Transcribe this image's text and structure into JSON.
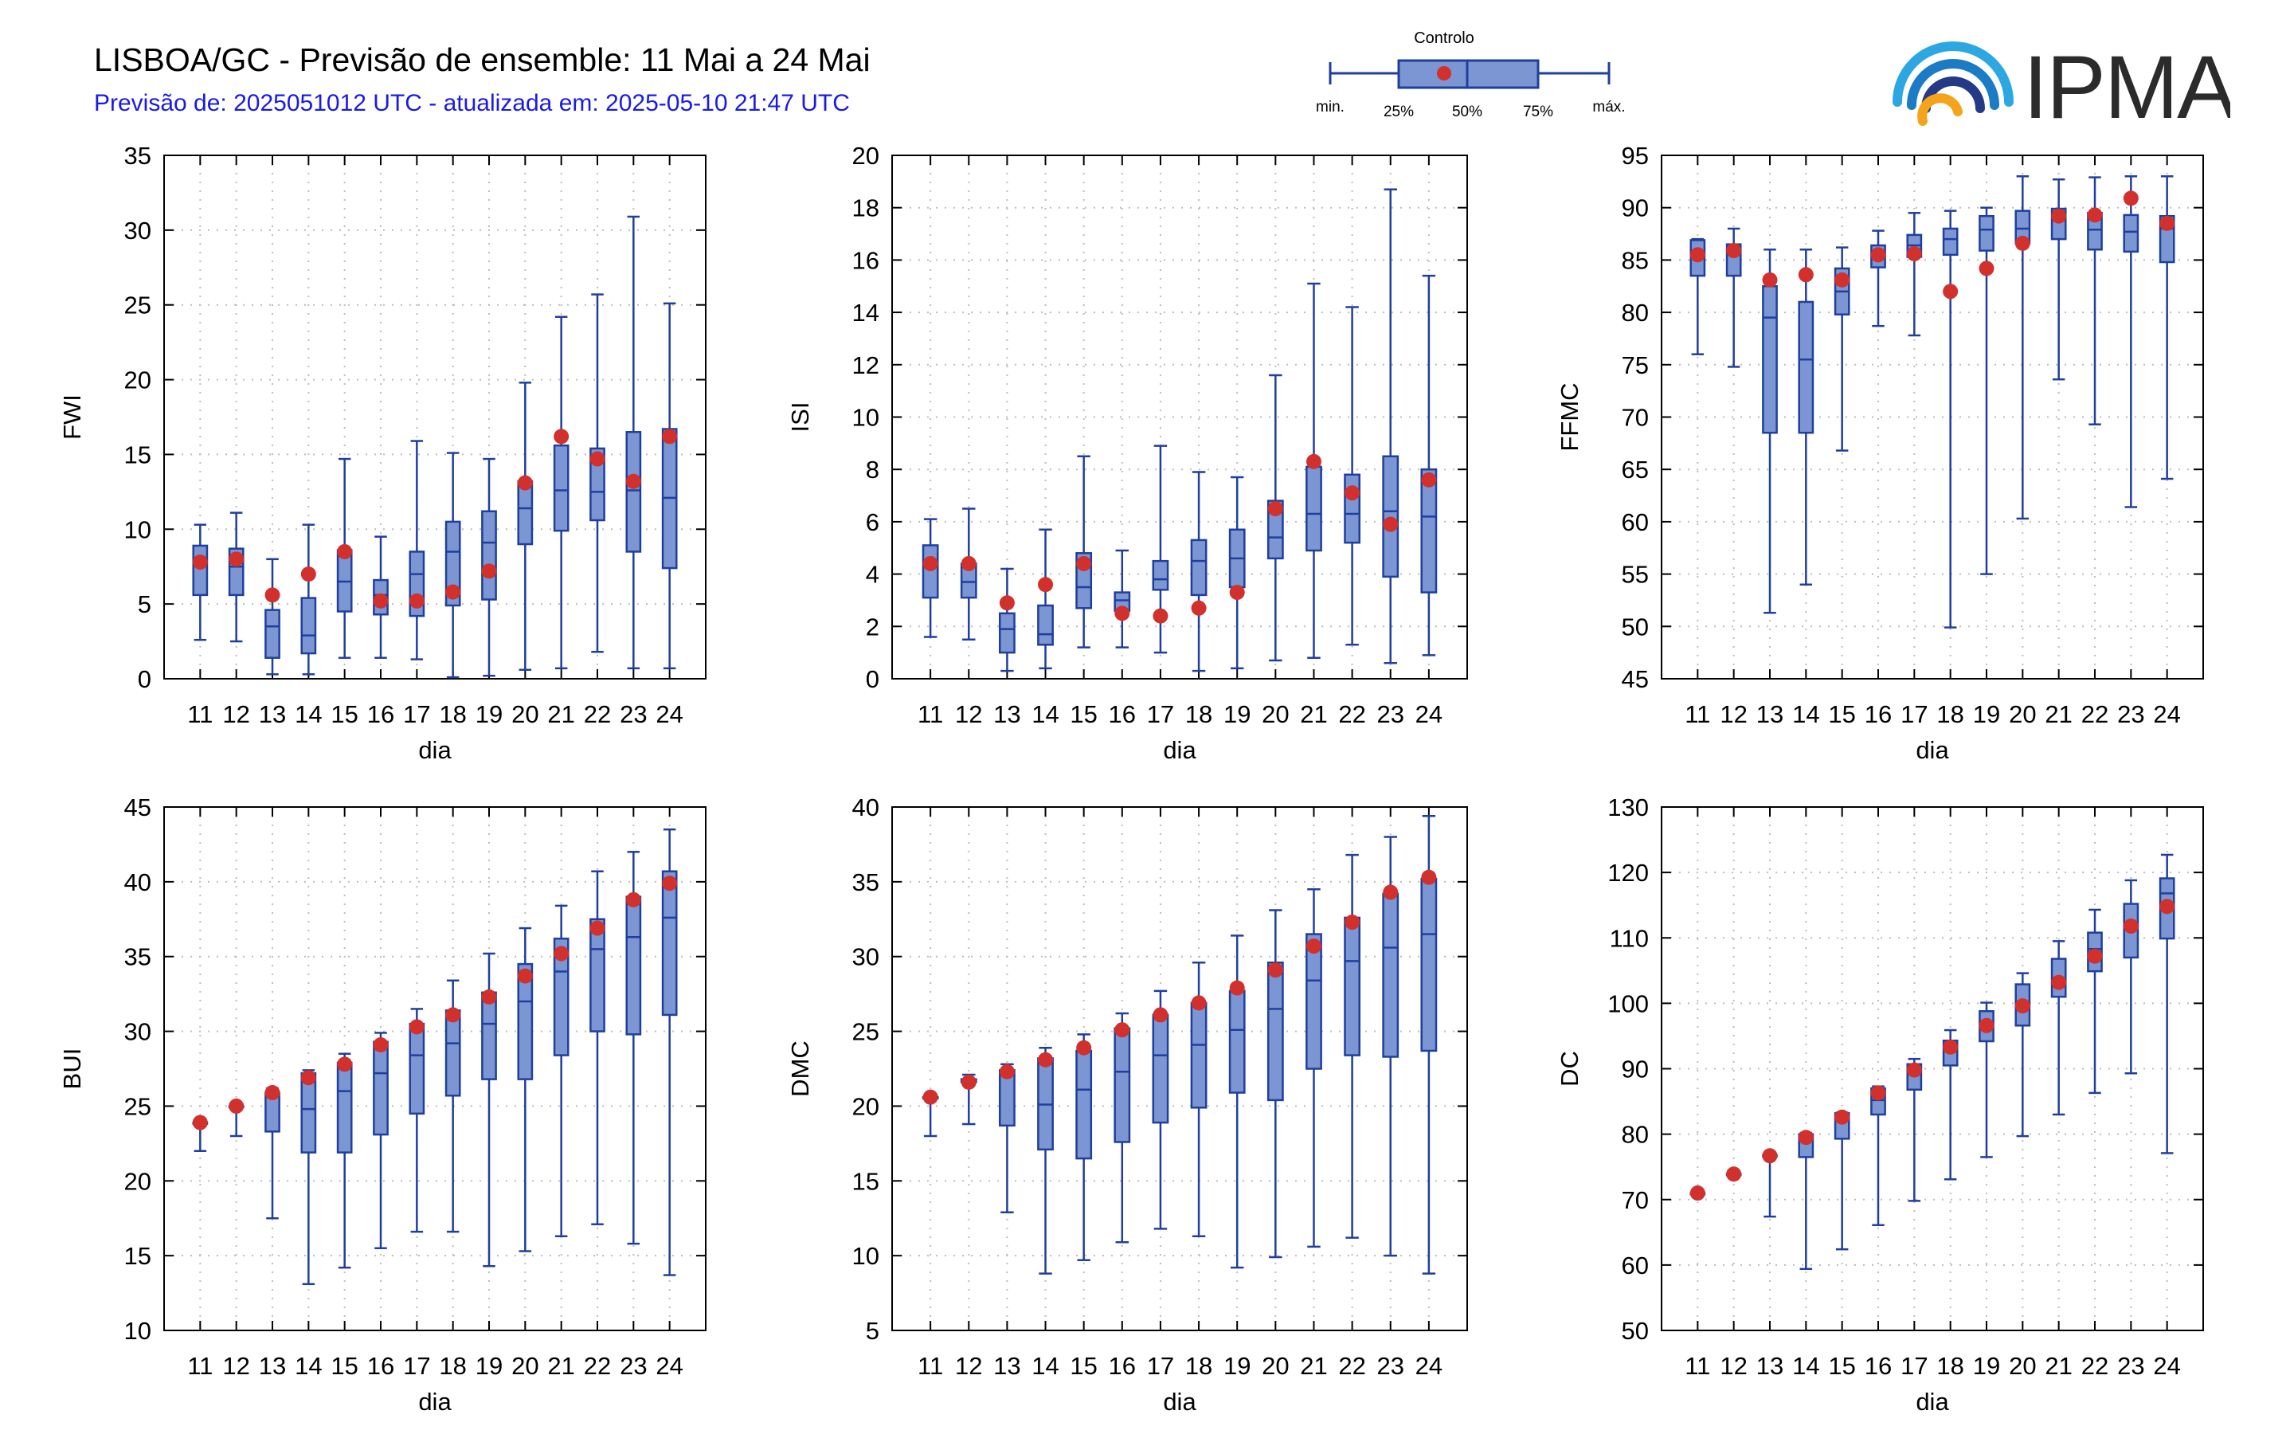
{
  "header": {
    "title": "LISBOA/GC - Previsão de ensemble: 11 Mai a 24 Mai",
    "subtitle": "Previsão de: 2025051012 UTC - atualizada em: 2025-05-10 21:47 UTC"
  },
  "logo": {
    "text": "IPMA"
  },
  "legend": {
    "control_label": "Controlo",
    "min_label": "min.",
    "p25_label": "25%",
    "p50_label": "50%",
    "p75_label": "75%",
    "max_label": "máx."
  },
  "colors": {
    "box_fill": "#7b96d2",
    "box_stroke": "#1f3f9e",
    "control_marker": "#d1302c",
    "grid": "#bdbdbd"
  },
  "chart_data": [
    {
      "type": "box",
      "ylabel": "FWI",
      "xlabel": "dia",
      "ylim": [
        0,
        35
      ],
      "yticks": [
        0,
        5,
        10,
        15,
        20,
        25,
        30,
        35
      ],
      "categories": [
        "11",
        "12",
        "13",
        "14",
        "15",
        "16",
        "17",
        "18",
        "19",
        "20",
        "21",
        "22",
        "23",
        "24"
      ],
      "min": [
        2.6,
        2.5,
        0.3,
        0.3,
        1.4,
        1.4,
        1.3,
        0.1,
        0.2,
        0.6,
        0.7,
        1.8,
        0.7,
        0.7
      ],
      "q1": [
        5.6,
        5.6,
        1.4,
        1.7,
        4.5,
        4.3,
        4.2,
        4.9,
        5.3,
        9.0,
        9.9,
        10.6,
        8.5,
        7.4
      ],
      "median": [
        7.7,
        7.5,
        3.5,
        2.9,
        6.5,
        5.6,
        7.0,
        8.5,
        9.1,
        11.4,
        12.6,
        12.5,
        12.6,
        12.1
      ],
      "q3": [
        8.9,
        8.7,
        4.6,
        5.4,
        8.6,
        6.6,
        8.5,
        10.5,
        11.2,
        13.2,
        15.6,
        15.4,
        16.5,
        16.7
      ],
      "max": [
        10.3,
        11.1,
        8.0,
        10.3,
        14.7,
        9.5,
        15.9,
        15.1,
        14.7,
        19.8,
        24.2,
        25.7,
        30.9,
        25.1
      ],
      "control": [
        7.8,
        8.0,
        5.6,
        7.0,
        8.5,
        5.2,
        5.2,
        5.8,
        7.2,
        13.1,
        16.2,
        14.7,
        13.2,
        16.2
      ]
    },
    {
      "type": "box",
      "ylabel": "ISI",
      "xlabel": "dia",
      "ylim": [
        0,
        20
      ],
      "yticks": [
        0,
        2,
        4,
        6,
        8,
        10,
        12,
        14,
        16,
        18,
        20
      ],
      "categories": [
        "11",
        "12",
        "13",
        "14",
        "15",
        "16",
        "17",
        "18",
        "19",
        "20",
        "21",
        "22",
        "23",
        "24"
      ],
      "min": [
        1.6,
        1.5,
        0.3,
        0.4,
        1.2,
        1.2,
        1.0,
        0.3,
        0.4,
        0.7,
        0.8,
        1.3,
        0.6,
        0.9
      ],
      "q1": [
        3.1,
        3.1,
        1.0,
        1.3,
        2.7,
        2.6,
        3.4,
        3.2,
        3.5,
        4.6,
        4.9,
        5.2,
        3.9,
        3.3
      ],
      "median": [
        4.3,
        3.7,
        1.9,
        1.7,
        3.5,
        3.0,
        3.8,
        4.5,
        4.6,
        5.4,
        6.3,
        6.3,
        6.4,
        6.2
      ],
      "q3": [
        5.1,
        4.4,
        2.5,
        2.8,
        4.8,
        3.3,
        4.5,
        5.3,
        5.7,
        6.8,
        8.1,
        7.8,
        8.5,
        8.0
      ],
      "max": [
        6.1,
        6.5,
        4.2,
        5.7,
        8.5,
        4.9,
        8.9,
        7.9,
        7.7,
        11.6,
        15.1,
        14.2,
        18.7,
        15.4
      ],
      "control": [
        4.4,
        4.4,
        2.9,
        3.6,
        4.4,
        2.5,
        2.4,
        2.7,
        3.3,
        6.5,
        8.3,
        7.1,
        5.9,
        7.6
      ]
    },
    {
      "type": "box",
      "ylabel": "FFMC",
      "xlabel": "dia",
      "ylim": [
        45,
        95
      ],
      "yticks": [
        45,
        50,
        55,
        60,
        65,
        70,
        75,
        80,
        85,
        90,
        95
      ],
      "categories": [
        "11",
        "12",
        "13",
        "14",
        "15",
        "16",
        "17",
        "18",
        "19",
        "20",
        "21",
        "22",
        "23",
        "24"
      ],
      "min": [
        76.0,
        74.8,
        51.3,
        54.0,
        66.8,
        78.7,
        77.8,
        49.9,
        55.0,
        60.3,
        73.6,
        69.3,
        61.4,
        64.1
      ],
      "q1": [
        83.5,
        83.5,
        68.5,
        68.5,
        79.8,
        84.3,
        85.3,
        85.5,
        85.9,
        86.6,
        87.0,
        86.0,
        85.8,
        84.8
      ],
      "median": [
        85.8,
        85.7,
        79.5,
        75.5,
        82.0,
        85.5,
        86.4,
        87.0,
        87.9,
        88.0,
        88.8,
        87.9,
        87.7,
        88.0
      ],
      "q3": [
        86.9,
        86.5,
        82.5,
        81.0,
        84.2,
        86.4,
        87.4,
        88.0,
        89.2,
        89.7,
        89.9,
        89.5,
        89.3,
        89.2
      ],
      "max": [
        87.0,
        88.0,
        86.0,
        86.0,
        86.2,
        87.8,
        89.5,
        89.7,
        90.0,
        93.0,
        92.7,
        92.9,
        93.0,
        93.0
      ],
      "control": [
        85.5,
        85.9,
        83.1,
        83.6,
        83.1,
        85.5,
        85.6,
        82.0,
        84.2,
        86.6,
        89.2,
        89.3,
        90.9,
        88.5
      ]
    },
    {
      "type": "box",
      "ylabel": "BUI",
      "xlabel": "dia",
      "ylim": [
        10,
        45
      ],
      "yticks": [
        10,
        15,
        20,
        25,
        30,
        35,
        40,
        45
      ],
      "categories": [
        "11",
        "12",
        "13",
        "14",
        "15",
        "16",
        "17",
        "18",
        "19",
        "20",
        "21",
        "22",
        "23",
        "24"
      ],
      "min": [
        22.0,
        23.0,
        17.5,
        13.1,
        14.2,
        15.5,
        16.6,
        16.6,
        14.3,
        15.3,
        16.3,
        17.1,
        15.8,
        13.7
      ],
      "q1": [
        23.9,
        25.0,
        23.3,
        21.9,
        21.9,
        23.1,
        24.5,
        25.7,
        26.8,
        26.8,
        28.4,
        30.0,
        29.8,
        31.1
      ],
      "median": [
        23.9,
        25.0,
        25.8,
        24.8,
        26.0,
        27.2,
        28.4,
        29.2,
        30.5,
        32.0,
        34.0,
        35.5,
        36.3,
        37.6
      ],
      "q3": [
        23.9,
        25.0,
        25.9,
        27.2,
        27.9,
        29.3,
        30.5,
        31.4,
        32.6,
        34.5,
        36.2,
        37.5,
        39.0,
        40.7
      ],
      "max": [
        23.9,
        25.0,
        26.2,
        27.4,
        28.5,
        29.9,
        31.5,
        33.4,
        35.2,
        36.9,
        38.4,
        40.7,
        42.0,
        43.5
      ],
      "control": [
        23.9,
        25.0,
        25.9,
        26.9,
        27.8,
        29.1,
        30.3,
        31.1,
        32.3,
        33.7,
        35.2,
        36.9,
        38.8,
        39.9
      ]
    },
    {
      "type": "box",
      "ylabel": "DMC",
      "xlabel": "dia",
      "ylim": [
        5,
        40
      ],
      "yticks": [
        5,
        10,
        15,
        20,
        25,
        30,
        35,
        40
      ],
      "categories": [
        "11",
        "12",
        "13",
        "14",
        "15",
        "16",
        "17",
        "18",
        "19",
        "20",
        "21",
        "22",
        "23",
        "24"
      ],
      "min": [
        18.0,
        18.8,
        12.9,
        8.8,
        9.7,
        10.9,
        11.8,
        11.3,
        9.2,
        9.9,
        10.6,
        11.2,
        10.0,
        8.8
      ],
      "q1": [
        20.6,
        21.6,
        18.7,
        17.1,
        16.5,
        17.6,
        18.9,
        19.9,
        20.9,
        20.4,
        22.5,
        23.4,
        23.3,
        23.7
      ],
      "median": [
        20.6,
        21.6,
        22.1,
        20.1,
        21.1,
        22.3,
        23.4,
        24.1,
        25.1,
        26.5,
        28.4,
        29.7,
        30.6,
        31.5
      ],
      "q3": [
        20.6,
        21.8,
        22.4,
        23.2,
        23.7,
        25.2,
        26.1,
        26.9,
        27.7,
        29.6,
        31.5,
        32.6,
        34.2,
        35.2
      ],
      "max": [
        20.6,
        22.1,
        22.8,
        23.9,
        24.8,
        26.2,
        27.7,
        29.6,
        31.4,
        33.1,
        34.5,
        36.8,
        38.0,
        39.4
      ],
      "control": [
        20.6,
        21.6,
        22.3,
        23.1,
        23.9,
        25.1,
        26.1,
        26.9,
        27.9,
        29.1,
        30.7,
        32.3,
        34.3,
        35.3
      ]
    },
    {
      "type": "box",
      "ylabel": "DC",
      "xlabel": "dia",
      "ylim": [
        50,
        130
      ],
      "yticks": [
        50,
        60,
        70,
        80,
        90,
        100,
        110,
        120,
        130
      ],
      "categories": [
        "11",
        "12",
        "13",
        "14",
        "15",
        "16",
        "17",
        "18",
        "19",
        "20",
        "21",
        "22",
        "23",
        "24"
      ],
      "min": [
        71.0,
        73.9,
        67.4,
        59.4,
        62.4,
        66.1,
        69.8,
        73.1,
        76.5,
        79.7,
        83.0,
        86.3,
        89.3,
        77.1
      ],
      "q1": [
        71.0,
        73.9,
        76.6,
        76.5,
        79.3,
        83.0,
        86.8,
        90.5,
        94.2,
        96.6,
        101.0,
        104.9,
        107.0,
        109.9
      ],
      "median": [
        71.0,
        73.9,
        76.7,
        79.4,
        82.3,
        85.2,
        89.2,
        92.9,
        96.9,
        99.8,
        103.7,
        108.3,
        112.1,
        116.8
      ],
      "q3": [
        71.0,
        73.9,
        76.8,
        80.0,
        83.2,
        87.0,
        90.7,
        94.3,
        98.8,
        102.9,
        106.8,
        110.8,
        115.2,
        119.1
      ],
      "max": [
        71.0,
        74.4,
        76.9,
        80.2,
        83.3,
        87.3,
        91.5,
        95.9,
        100.1,
        104.6,
        109.5,
        114.3,
        118.8,
        122.7
      ],
      "control": [
        71.0,
        73.9,
        76.7,
        79.5,
        82.6,
        86.3,
        89.8,
        93.3,
        96.6,
        99.6,
        103.2,
        107.2,
        111.8,
        114.8
      ]
    }
  ]
}
